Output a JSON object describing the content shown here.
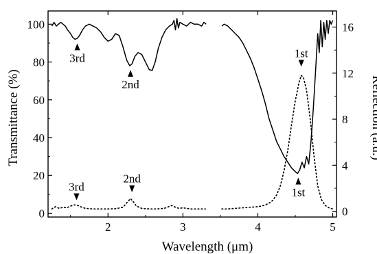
{
  "chart_data": {
    "type": "line",
    "xlabel": "Wavelength (μm)",
    "ylabel": "Transmittance (%)",
    "y2label": "Reflection (a.u.)",
    "xlim": [
      1.2,
      5.05
    ],
    "ylim": [
      -2,
      107
    ],
    "y2lim": [
      -0.5,
      17.4
    ],
    "xticks": [
      "2",
      "3",
      "4",
      "5"
    ],
    "yticks": [
      "0",
      "20",
      "40",
      "60",
      "80",
      "100"
    ],
    "y2ticks": [
      "0",
      "4",
      "8",
      "12",
      "16"
    ],
    "series": [
      {
        "axis": "left",
        "style": "solid",
        "color": "#000000",
        "segments": [
          [
            [
              1.25,
              99
            ],
            [
              1.28,
              101
            ],
            [
              1.31,
              99
            ],
            [
              1.34,
              100
            ],
            [
              1.37,
              101
            ],
            [
              1.4,
              100
            ],
            [
              1.43,
              99
            ],
            [
              1.46,
              97
            ],
            [
              1.5,
              95
            ],
            [
              1.53,
              93
            ],
            [
              1.56,
              92
            ],
            [
              1.59,
              92.5
            ],
            [
              1.62,
              94
            ],
            [
              1.66,
              97
            ],
            [
              1.7,
              99
            ],
            [
              1.75,
              100
            ],
            [
              1.8,
              99
            ],
            [
              1.85,
              98
            ],
            [
              1.9,
              96
            ],
            [
              1.95,
              93
            ],
            [
              2.0,
              91
            ],
            [
              2.05,
              92
            ],
            [
              2.1,
              95
            ],
            [
              2.15,
              94
            ],
            [
              2.2,
              88
            ],
            [
              2.25,
              81
            ],
            [
              2.29,
              78
            ],
            [
              2.32,
              79
            ],
            [
              2.36,
              83
            ],
            [
              2.4,
              85
            ],
            [
              2.45,
              84
            ],
            [
              2.5,
              80
            ],
            [
              2.55,
              76
            ],
            [
              2.59,
              75.5
            ],
            [
              2.63,
              80
            ],
            [
              2.67,
              87
            ],
            [
              2.72,
              93
            ],
            [
              2.77,
              97
            ],
            [
              2.82,
              99
            ],
            [
              2.86,
              100
            ],
            [
              2.88,
              102
            ],
            [
              2.9,
              97
            ],
            [
              2.92,
              103
            ],
            [
              2.94,
              98
            ],
            [
              2.96,
              101
            ],
            [
              3.0,
              100
            ],
            [
              3.05,
              99
            ],
            [
              3.1,
              101
            ],
            [
              3.15,
              100
            ],
            [
              3.2,
              100
            ],
            [
              3.25,
              99
            ],
            [
              3.28,
              101
            ],
            [
              3.31,
              100
            ]
          ],
          [
            [
              3.52,
              99
            ],
            [
              3.55,
              100
            ],
            [
              3.6,
              99
            ],
            [
              3.65,
              97
            ],
            [
              3.7,
              95
            ],
            [
              3.75,
              93
            ],
            [
              3.8,
              90
            ],
            [
              3.85,
              86
            ],
            [
              3.9,
              82
            ],
            [
              3.95,
              77
            ],
            [
              4.0,
              71
            ],
            [
              4.05,
              65
            ],
            [
              4.1,
              58
            ],
            [
              4.15,
              50
            ],
            [
              4.2,
              44
            ],
            [
              4.25,
              38
            ],
            [
              4.3,
              34
            ],
            [
              4.35,
              30
            ],
            [
              4.4,
              27
            ],
            [
              4.45,
              24
            ],
            [
              4.5,
              22
            ],
            [
              4.53,
              21
            ],
            [
              4.56,
              23
            ],
            [
              4.59,
              27
            ],
            [
              4.62,
              24
            ],
            [
              4.65,
              30
            ],
            [
              4.68,
              26
            ],
            [
              4.71,
              38
            ],
            [
              4.74,
              55
            ],
            [
              4.77,
              75
            ],
            [
              4.8,
              95
            ],
            [
              4.82,
              85
            ],
            [
              4.84,
              102
            ],
            [
              4.86,
              88
            ],
            [
              4.88,
              101
            ],
            [
              4.9,
              92
            ],
            [
              4.92,
              102
            ],
            [
              4.94,
              95
            ],
            [
              4.96,
              102
            ],
            [
              4.98,
              100
            ],
            [
              5.0,
              102
            ]
          ]
        ]
      },
      {
        "axis": "right",
        "style": "dotted",
        "color": "#000000",
        "segments": [
          [
            [
              1.25,
              0.2
            ],
            [
              1.3,
              0.4
            ],
            [
              1.35,
              0.25
            ],
            [
              1.4,
              0.35
            ],
            [
              1.45,
              0.3
            ],
            [
              1.5,
              0.45
            ],
            [
              1.55,
              0.55
            ],
            [
              1.6,
              0.5
            ],
            [
              1.65,
              0.35
            ],
            [
              1.7,
              0.25
            ],
            [
              1.8,
              0.2
            ],
            [
              1.9,
              0.2
            ],
            [
              2.0,
              0.2
            ],
            [
              2.1,
              0.22
            ],
            [
              2.2,
              0.35
            ],
            [
              2.26,
              0.8
            ],
            [
              2.3,
              1.1
            ],
            [
              2.34,
              0.8
            ],
            [
              2.38,
              0.45
            ],
            [
              2.45,
              0.25
            ],
            [
              2.55,
              0.2
            ],
            [
              2.65,
              0.2
            ],
            [
              2.75,
              0.25
            ],
            [
              2.85,
              0.5
            ],
            [
              2.9,
              0.35
            ],
            [
              2.95,
              0.25
            ],
            [
              3.0,
              0.3
            ],
            [
              3.05,
              0.25
            ],
            [
              3.1,
              0.2
            ],
            [
              3.2,
              0.2
            ],
            [
              3.3,
              0.2
            ]
          ],
          [
            [
              3.52,
              0.2
            ],
            [
              3.6,
              0.2
            ],
            [
              3.7,
              0.25
            ],
            [
              3.8,
              0.3
            ],
            [
              3.9,
              0.35
            ],
            [
              4.0,
              0.4
            ],
            [
              4.05,
              0.45
            ],
            [
              4.1,
              0.55
            ],
            [
              4.15,
              0.7
            ],
            [
              4.2,
              0.95
            ],
            [
              4.25,
              1.4
            ],
            [
              4.3,
              2.2
            ],
            [
              4.35,
              3.5
            ],
            [
              4.4,
              5.3
            ],
            [
              4.45,
              7.5
            ],
            [
              4.5,
              9.6
            ],
            [
              4.55,
              11.2
            ],
            [
              4.58,
              11.8
            ],
            [
              4.61,
              11.6
            ],
            [
              4.65,
              10.5
            ],
            [
              4.7,
              8.0
            ],
            [
              4.75,
              4.8
            ],
            [
              4.8,
              2.2
            ],
            [
              4.85,
              1.0
            ],
            [
              4.9,
              0.5
            ],
            [
              4.95,
              0.3
            ],
            [
              5.0,
              0.2
            ]
          ]
        ]
      }
    ],
    "annotations": [
      {
        "label": "3rd",
        "x": 1.59,
        "y": 92,
        "axis": "left",
        "position": "below",
        "arrow": "up"
      },
      {
        "label": "2nd",
        "x": 2.3,
        "y": 78,
        "axis": "left",
        "position": "below",
        "arrow": "up"
      },
      {
        "label": "1st",
        "x": 4.58,
        "y": 12.2,
        "axis": "right",
        "position": "above",
        "arrow": "down"
      },
      {
        "label": "1st",
        "x": 4.54,
        "y": 21,
        "axis": "left",
        "position": "below",
        "arrow": "up"
      },
      {
        "label": "3rd",
        "x": 1.58,
        "y": 0.6,
        "axis": "right",
        "position": "above",
        "arrow": "down"
      },
      {
        "label": "2nd",
        "x": 2.32,
        "y": 1.3,
        "axis": "right",
        "position": "above",
        "arrow": "down"
      }
    ]
  }
}
